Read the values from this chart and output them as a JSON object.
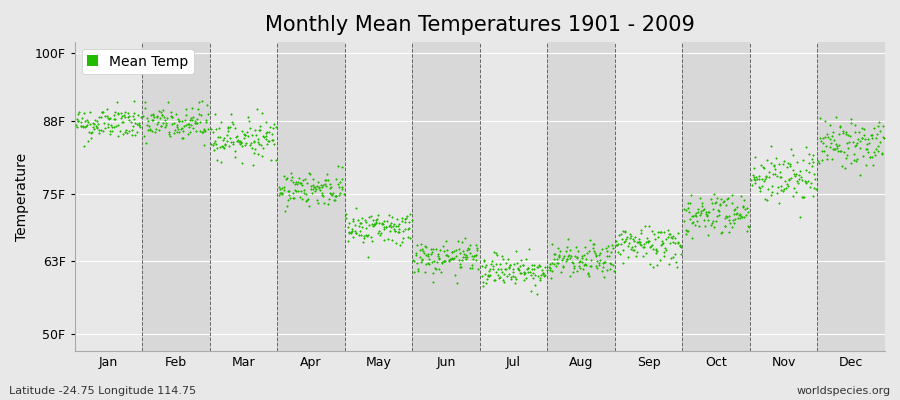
{
  "title": "Monthly Mean Temperatures 1901 - 2009",
  "ylabel": "Temperature",
  "yticks": [
    50,
    63,
    75,
    88,
    100
  ],
  "ytick_labels": [
    "50F",
    "63F",
    "75F",
    "88F",
    "100F"
  ],
  "ylim": [
    47,
    102
  ],
  "months": [
    "Jan",
    "Feb",
    "Mar",
    "Apr",
    "May",
    "Jun",
    "Jul",
    "Aug",
    "Sep",
    "Oct",
    "Nov",
    "Dec"
  ],
  "dot_color": "#22BB00",
  "bg_color_light": "#E8E8E8",
  "bg_color_dark": "#D8D8D8",
  "legend_label": "Mean Temp",
  "bottom_left": "Latitude -24.75 Longitude 114.75",
  "bottom_right": "worldspecies.org",
  "title_fontsize": 15,
  "label_fontsize": 10,
  "tick_fontsize": 9,
  "n_years": 109,
  "mean_temps_F": [
    87.5,
    87.5,
    85.0,
    76.0,
    69.0,
    63.5,
    61.5,
    63.0,
    66.0,
    71.5,
    78.0,
    84.0
  ],
  "std_temps_F": [
    1.5,
    1.8,
    1.8,
    1.5,
    1.5,
    1.5,
    1.5,
    1.5,
    1.8,
    2.0,
    2.5,
    2.2
  ]
}
